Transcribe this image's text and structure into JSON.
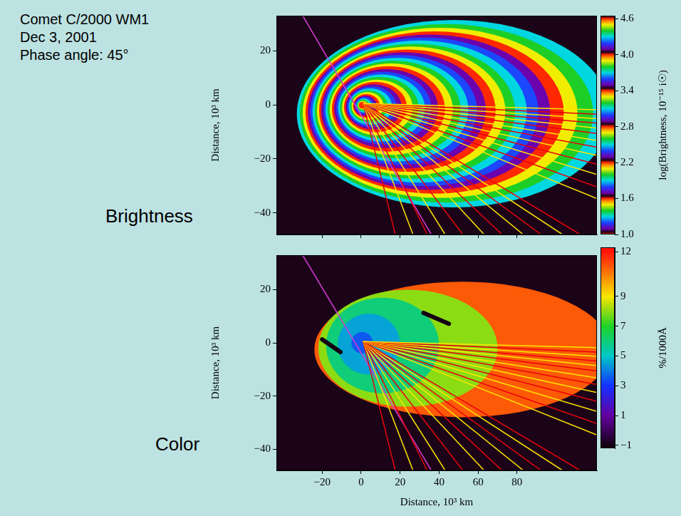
{
  "title": "Comet C/2000 WM1",
  "annotations": [
    "Dec 3, 2001",
    "Phase angle: 45°"
  ],
  "chart_data": [
    {
      "type": "image",
      "subtitle": "Brightness",
      "ylabel": "Distance, 10³ km",
      "tick_labels": "y",
      "xlim": [
        -43.5,
        121
      ],
      "xticks": [
        {
          "value": -20,
          "label": "−20"
        },
        0,
        20,
        40,
        60,
        80
      ],
      "ylim": [
        -48,
        33
      ],
      "yticks": [
        {
          "value": -40,
          "label": "−40"
        },
        {
          "value": -20,
          "label": "−20"
        },
        0,
        20
      ],
      "grid": false,
      "footprint": [
        [
          -43.5,
          33
        ],
        [
          92,
          33
        ],
        [
          121,
          14
        ],
        [
          121,
          -21
        ],
        [
          74,
          -48
        ],
        [
          -43.5,
          -48
        ]
      ],
      "isophotes": [
        {
          "level": 1.3,
          "x": [
            -33.0,
            128
          ],
          "y": [
            -38.0,
            31.4
          ]
        },
        {
          "level": 1.4,
          "x": [
            -31.5,
            119
          ],
          "y": [
            -36.2,
            29.9
          ]
        },
        {
          "level": 1.5,
          "x": [
            -30.0,
            111
          ],
          "y": [
            -34.5,
            28.5
          ]
        },
        {
          "level": 1.6,
          "x": [
            -28.6,
            104
          ],
          "y": [
            -32.9,
            27.2
          ]
        },
        {
          "level": 1.7,
          "x": [
            -27.4,
            97
          ],
          "y": [
            -31.5,
            26.0
          ]
        },
        {
          "level": 1.8,
          "x": [
            -26.2,
            91
          ],
          "y": [
            -30.1,
            24.9
          ]
        },
        {
          "level": 1.9,
          "x": [
            -25.0,
            85
          ],
          "y": [
            -28.8,
            23.8
          ]
        },
        {
          "level": 2.0,
          "x": [
            -23.8,
            79
          ],
          "y": [
            -27.4,
            22.6
          ]
        },
        {
          "level": 2.1,
          "x": [
            -22.7,
            74
          ],
          "y": [
            -26.1,
            21.6
          ]
        },
        {
          "level": 2.2,
          "x": [
            -21.6,
            69
          ],
          "y": [
            -24.8,
            20.5
          ]
        },
        {
          "level": 2.3,
          "x": [
            -20.5,
            64
          ],
          "y": [
            -23.6,
            19.5
          ]
        },
        {
          "level": 2.4,
          "x": [
            -19.4,
            59.5
          ],
          "y": [
            -22.3,
            18.4
          ]
        },
        {
          "level": 2.5,
          "x": [
            -18.3,
            55
          ],
          "y": [
            -21.0,
            17.4
          ]
        },
        {
          "level": 2.6,
          "x": [
            -17.2,
            51
          ],
          "y": [
            -19.8,
            16.3
          ]
        },
        {
          "level": 2.7,
          "x": [
            -16.1,
            47
          ],
          "y": [
            -18.5,
            15.3
          ]
        },
        {
          "level": 2.8,
          "x": [
            -15.0,
            43
          ],
          "y": [
            -17.3,
            14.3
          ]
        },
        {
          "level": 2.9,
          "x": [
            -13.9,
            39.5
          ],
          "y": [
            -16.0,
            13.2
          ]
        },
        {
          "level": 3.0,
          "x": [
            -12.8,
            36
          ],
          "y": [
            -14.7,
            12.2
          ]
        },
        {
          "level": 3.1,
          "x": [
            -11.8,
            32.7
          ],
          "y": [
            -13.6,
            11.2
          ]
        },
        {
          "level": 3.2,
          "x": [
            -10.8,
            29.5
          ],
          "y": [
            -12.4,
            10.3
          ]
        },
        {
          "level": 3.3,
          "x": [
            -9.8,
            26.4
          ],
          "y": [
            -11.3,
            9.3
          ]
        },
        {
          "level": 3.4,
          "x": [
            -8.9,
            23.5
          ],
          "y": [
            -10.2,
            8.5
          ]
        },
        {
          "level": 3.5,
          "x": [
            -8.0,
            20.8
          ],
          "y": [
            -9.2,
            7.6
          ]
        },
        {
          "level": 3.6,
          "x": [
            -7.2,
            18.2
          ],
          "y": [
            -8.3,
            6.8
          ]
        },
        {
          "level": 3.7,
          "x": [
            -6.4,
            15.8
          ],
          "y": [
            -7.4,
            6.1
          ]
        },
        {
          "level": 3.8,
          "x": [
            -5.6,
            13.5
          ],
          "y": [
            -6.4,
            5.3
          ]
        },
        {
          "level": 3.9,
          "x": [
            -4.9,
            11.5
          ],
          "y": [
            -5.6,
            4.7
          ]
        },
        {
          "level": 4.0,
          "x": [
            -4.2,
            9.6
          ],
          "y": [
            -4.8,
            4.0
          ]
        },
        {
          "level": 4.1,
          "x": [
            -3.6,
            8
          ],
          "y": [
            -4.1,
            3.4
          ]
        },
        {
          "level": 4.2,
          "x": [
            -3.0,
            6.5
          ],
          "y": [
            -3.5,
            2.9
          ]
        },
        {
          "level": 4.3,
          "x": [
            -2.5,
            5.3
          ],
          "y": [
            -2.9,
            2.4
          ]
        },
        {
          "level": 4.4,
          "x": [
            -2.0,
            4.2
          ],
          "y": [
            -2.3,
            1.9
          ]
        },
        {
          "level": 4.5,
          "x": [
            -1.6,
            3.3
          ],
          "y": [
            -1.8,
            1.5
          ]
        },
        {
          "level": 4.6,
          "x": [
            -1.2,
            2.5
          ],
          "y": [
            -1.4,
            1.1
          ]
        }
      ],
      "rays": {
        "origin": [
          1,
          0.5
        ],
        "ends": [
          [
            121,
            -1.8
          ],
          [
            121,
            -3.5
          ],
          [
            121,
            -5.1
          ],
          [
            121,
            -6.8
          ],
          [
            121,
            -8.6
          ],
          [
            121,
            -10.6
          ],
          [
            121,
            -13.2
          ],
          [
            121,
            -15.7
          ],
          [
            121,
            -18.7
          ],
          [
            121,
            -22
          ],
          [
            121,
            -25.8
          ],
          [
            121,
            -30.4
          ],
          [
            121,
            -34.7
          ],
          [
            112.4,
            -48
          ],
          [
            103.3,
            -48
          ],
          [
            92.3,
            -48
          ],
          [
            83.2,
            -48
          ],
          [
            72.3,
            -48
          ],
          [
            63.1,
            -48
          ],
          [
            52.2,
            -48
          ],
          [
            43.1,
            -48
          ],
          [
            33.9,
            -48
          ],
          [
            26.6,
            -48
          ],
          [
            17.5,
            -48
          ]
        ],
        "colors": [
          "#ffe600",
          "#e8000b",
          "#ffe600",
          "#e8000b",
          "#ffe600",
          "#e8000b",
          "#ffe600",
          "#e8000b",
          "#ffe600",
          "#e8000b",
          "#ffe600",
          "#e8000b",
          "#ffe600",
          "#e8000b",
          "#ffe600",
          "#e8000b",
          "#ffe600",
          "#e8000b",
          "#ffe600",
          "#e8000b",
          "#ffe600",
          "#e8000b",
          "#ffe600",
          "#e8000b"
        ]
      },
      "line": {
        "points": [
          [
            -30,
            33
          ],
          [
            36,
            -48
          ]
        ],
        "color": "#d23cd2"
      },
      "colorbar": {
        "label": "log(Brightness, 10⁻¹⁵ i☉)",
        "range": [
          1.0,
          4.65
        ],
        "ticks": [
          {
            "value": 1,
            "label": "1.0"
          },
          1.6,
          2.2,
          2.8,
          3.4,
          {
            "value": 4,
            "label": "4.0"
          },
          4.6
        ]
      }
    },
    {
      "type": "image",
      "subtitle": "Color",
      "xlabel": "Distance, 10³ km",
      "ylabel": "Distance, 10³ km",
      "xlim": [
        -43.5,
        121
      ],
      "xticks": [
        {
          "value": -20,
          "label": "−20"
        },
        0,
        20,
        40,
        60,
        80
      ],
      "ylim": [
        -48,
        33
      ],
      "yticks": [
        {
          "value": -40,
          "label": "−40"
        },
        {
          "value": -20,
          "label": "−20"
        },
        0,
        20
      ],
      "grid": false,
      "regions": [
        {
          "value": 11,
          "x": [
            -24,
            128
          ],
          "y": [
            -28,
            23
          ]
        },
        {
          "value": 8,
          "x": [
            -22,
            70
          ],
          "y": [
            -24,
            20
          ]
        },
        {
          "value": 6,
          "x": [
            -18,
            40
          ],
          "y": [
            -19,
            17
          ]
        },
        {
          "value": 4.5,
          "x": [
            -12,
            20
          ],
          "y": [
            -12,
            11
          ]
        },
        {
          "value": 3.5,
          "x": [
            -5,
            6
          ],
          "y": [
            -4,
            4
          ]
        }
      ],
      "streaks": [
        {
          "value": -1,
          "points": [
            [
              32,
              11.3
            ],
            [
              45,
              7.2
            ]
          ]
        },
        {
          "value": -1,
          "points": [
            [
              -20,
              1.3
            ],
            [
              -10.6,
              -3.5
            ]
          ]
        }
      ],
      "rays": {
        "origin": [
          1,
          0.5
        ],
        "ends": [
          [
            121,
            -1.8
          ],
          [
            121,
            -3.5
          ],
          [
            121,
            -5.1
          ],
          [
            121,
            -6.8
          ],
          [
            121,
            -8.6
          ],
          [
            121,
            -10.6
          ],
          [
            121,
            -13.2
          ],
          [
            121,
            -15.7
          ],
          [
            121,
            -18.7
          ],
          [
            121,
            -22
          ],
          [
            121,
            -25.8
          ],
          [
            121,
            -30.4
          ],
          [
            121,
            -34.7
          ],
          [
            112.4,
            -48
          ],
          [
            103.3,
            -48
          ],
          [
            92.3,
            -48
          ],
          [
            83.2,
            -48
          ],
          [
            72.3,
            -48
          ],
          [
            63.1,
            -48
          ],
          [
            52.2,
            -48
          ],
          [
            43.1,
            -48
          ],
          [
            33.9,
            -48
          ],
          [
            26.6,
            -48
          ],
          [
            17.5,
            -48
          ]
        ],
        "colors": [
          "#ffe600",
          "#e8000b",
          "#ffe600",
          "#e8000b",
          "#ffe600",
          "#e8000b",
          "#ffe600",
          "#e8000b",
          "#ffe600",
          "#e8000b",
          "#ffe600",
          "#e8000b",
          "#ffe600",
          "#e8000b",
          "#ffe600",
          "#e8000b",
          "#ffe600",
          "#e8000b",
          "#ffe600",
          "#e8000b",
          "#ffe600",
          "#e8000b",
          "#ffe600",
          "#e8000b"
        ]
      },
      "line": {
        "points": [
          [
            -30,
            33
          ],
          [
            36,
            -48
          ]
        ],
        "color": "#d23cd2"
      },
      "colorbar": {
        "label": "%/1000Å",
        "range": [
          -1.2,
          12.3
        ],
        "ticks": [
          {
            "value": -1,
            "label": "−1"
          },
          1,
          3,
          5,
          7,
          9,
          12
        ]
      }
    }
  ]
}
